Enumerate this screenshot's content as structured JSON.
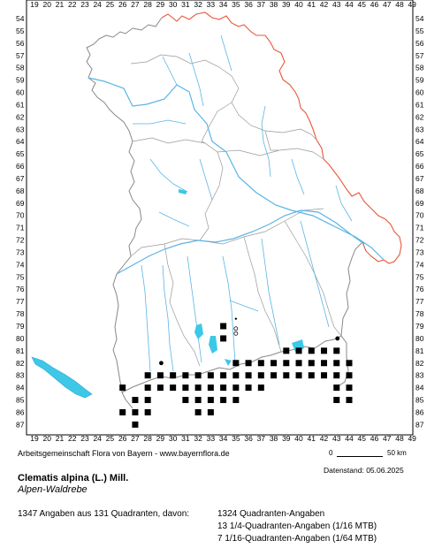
{
  "map": {
    "x_labels": [
      "19",
      "20",
      "21",
      "22",
      "23",
      "24",
      "25",
      "26",
      "27",
      "28",
      "29",
      "30",
      "31",
      "32",
      "33",
      "34",
      "35",
      "36",
      "37",
      "38",
      "39",
      "40",
      "41",
      "42",
      "43",
      "44",
      "45",
      "46",
      "47",
      "48",
      "49"
    ],
    "y_labels": [
      "54",
      "55",
      "56",
      "57",
      "58",
      "59",
      "60",
      "61",
      "62",
      "63",
      "64",
      "65",
      "66",
      "67",
      "68",
      "69",
      "70",
      "71",
      "72",
      "73",
      "74",
      "75",
      "76",
      "77",
      "78",
      "79",
      "80",
      "81",
      "82",
      "83",
      "84",
      "85",
      "86",
      "87"
    ],
    "colors": {
      "border_outer": "#e8583a",
      "border_inner": "#888888",
      "river": "#5ab4e6",
      "lake": "#3cc8e6",
      "record": "#000000"
    },
    "squares": [
      [
        26,
        84
      ],
      [
        26,
        86
      ],
      [
        27,
        85
      ],
      [
        27,
        86
      ],
      [
        27,
        87
      ],
      [
        28,
        83
      ],
      [
        28,
        84
      ],
      [
        28,
        85
      ],
      [
        28,
        86
      ],
      [
        29,
        83
      ],
      [
        29,
        84
      ],
      [
        30,
        83
      ],
      [
        30,
        84
      ],
      [
        31,
        83
      ],
      [
        31,
        84
      ],
      [
        31,
        85
      ],
      [
        32,
        83
      ],
      [
        32,
        84
      ],
      [
        32,
        85
      ],
      [
        32,
        86
      ],
      [
        33,
        83
      ],
      [
        33,
        84
      ],
      [
        33,
        85
      ],
      [
        33,
        86
      ],
      [
        34,
        79
      ],
      [
        34,
        80
      ],
      [
        34,
        83
      ],
      [
        34,
        84
      ],
      [
        34,
        85
      ],
      [
        35,
        82
      ],
      [
        35,
        83
      ],
      [
        35,
        84
      ],
      [
        35,
        85
      ],
      [
        36,
        82
      ],
      [
        36,
        83
      ],
      [
        36,
        84
      ],
      [
        37,
        82
      ],
      [
        37,
        83
      ],
      [
        37,
        84
      ],
      [
        38,
        82
      ],
      [
        38,
        83
      ],
      [
        39,
        81
      ],
      [
        39,
        82
      ],
      [
        39,
        83
      ],
      [
        40,
        81
      ],
      [
        40,
        82
      ],
      [
        40,
        83
      ],
      [
        41,
        81
      ],
      [
        41,
        82
      ],
      [
        41,
        83
      ],
      [
        42,
        81
      ],
      [
        42,
        82
      ],
      [
        42,
        83
      ],
      [
        43,
        81
      ],
      [
        43,
        82
      ],
      [
        43,
        83
      ],
      [
        43,
        84
      ],
      [
        43,
        85
      ],
      [
        44,
        82
      ],
      [
        44,
        83
      ],
      [
        44,
        84
      ],
      [
        44,
        85
      ]
    ],
    "dots": [
      [
        29,
        82
      ],
      [
        29,
        83
      ],
      [
        33,
        86
      ],
      [
        34,
        80
      ],
      [
        42,
        81
      ],
      [
        43,
        81
      ],
      [
        43,
        80
      ]
    ],
    "open_dots": [
      [
        35,
        79.2
      ],
      [
        35,
        79.6
      ]
    ],
    "small_dots": [
      [
        35,
        78.4
      ]
    ]
  },
  "footer": {
    "credit": "Arbeitsgemeinschaft Flora von Bayern - www.bayernflora.de",
    "scale_zero": "0",
    "scale_km": "50 km",
    "datenstand": "Datenstand: 05.06.2025",
    "species": "Clematis alpina (L.) Mill.",
    "common_name": "Alpen-Waldrebe",
    "summary": "1347 Angaben aus 131 Quadranten, davon:",
    "breakdown_1": "1324 Quadranten-Angaben",
    "breakdown_2": "13 1/4-Quadranten-Angaben (1/16 MTB)",
    "breakdown_3": "7 1/16-Quadranten-Angaben (1/64 MTB)"
  }
}
